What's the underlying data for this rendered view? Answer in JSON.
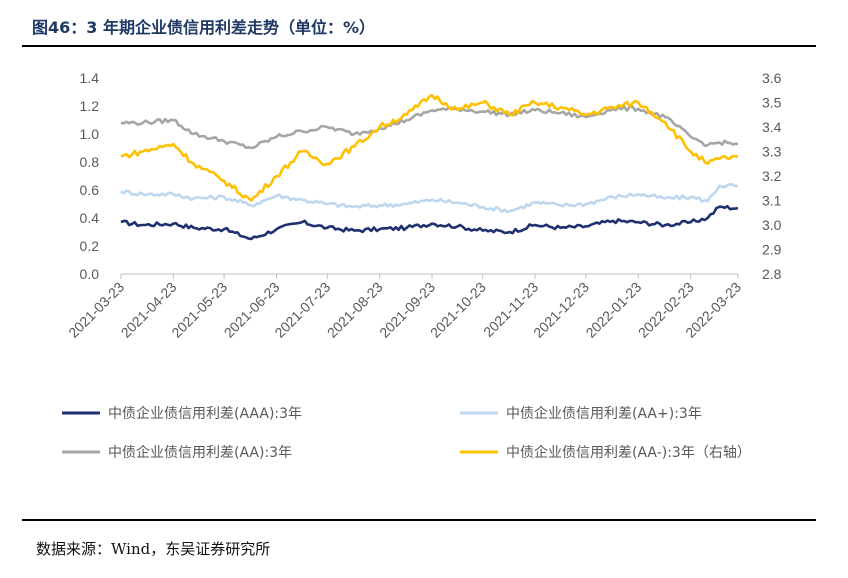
{
  "title": "图46：3 年期企业债信用利差走势（单位：%）",
  "source": "数据来源：Wind，东吴证券研究所",
  "chart_data": {
    "type": "line",
    "x_categories": [
      "2021-03-23",
      "2021-04-23",
      "2021-05-23",
      "2021-06-23",
      "2021-07-23",
      "2021-08-23",
      "2021-09-23",
      "2021-10-23",
      "2021-11-23",
      "2021-12-23",
      "2022-01-23",
      "2022-02-23",
      "2022-03-23"
    ],
    "y_left": {
      "ylim": [
        0.0,
        1.4
      ],
      "ticks": [
        "0.0",
        "0.2",
        "0.4",
        "0.6",
        "0.8",
        "1.0",
        "1.2",
        "1.4"
      ]
    },
    "y_right": {
      "ylim": [
        2.8,
        3.6
      ],
      "ticks": [
        "2.8",
        "2.9",
        "3.0",
        "3.1",
        "3.2",
        "3.3",
        "3.4",
        "3.5",
        "3.6"
      ]
    },
    "legend_placement": "bottom",
    "series": [
      {
        "name": "中债企业债信用利差(AAA):3年",
        "axis": "left",
        "color": "#1f3070",
        "x": [
          "2021-03-23",
          "2021-04-05",
          "2021-04-23",
          "2021-05-05",
          "2021-05-23",
          "2021-06-08",
          "2021-06-23",
          "2021-07-08",
          "2021-07-23",
          "2021-08-08",
          "2021-08-23",
          "2021-09-08",
          "2021-09-23",
          "2021-10-08",
          "2021-10-23",
          "2021-11-08",
          "2021-11-23",
          "2021-12-08",
          "2021-12-23",
          "2022-01-08",
          "2022-01-23",
          "2022-02-08",
          "2022-02-23",
          "2022-03-05",
          "2022-03-12",
          "2022-03-23"
        ],
        "values": [
          0.37,
          0.35,
          0.36,
          0.33,
          0.32,
          0.25,
          0.32,
          0.37,
          0.33,
          0.31,
          0.32,
          0.33,
          0.36,
          0.34,
          0.31,
          0.3,
          0.35,
          0.33,
          0.34,
          0.38,
          0.37,
          0.35,
          0.37,
          0.4,
          0.48,
          0.47
        ]
      },
      {
        "name": "中债企业债信用利差(AA+):3年",
        "axis": "left",
        "color": "#bdd7ee",
        "x": [
          "2021-03-23",
          "2021-04-05",
          "2021-04-23",
          "2021-05-05",
          "2021-05-23",
          "2021-06-08",
          "2021-06-23",
          "2021-07-08",
          "2021-07-23",
          "2021-08-08",
          "2021-08-23",
          "2021-09-08",
          "2021-09-23",
          "2021-10-08",
          "2021-10-23",
          "2021-11-08",
          "2021-11-23",
          "2021-12-08",
          "2021-12-23",
          "2022-01-08",
          "2022-01-23",
          "2022-02-08",
          "2022-02-23",
          "2022-03-05",
          "2022-03-12",
          "2022-03-23"
        ],
        "values": [
          0.59,
          0.57,
          0.57,
          0.54,
          0.55,
          0.49,
          0.56,
          0.53,
          0.5,
          0.48,
          0.49,
          0.5,
          0.53,
          0.51,
          0.48,
          0.45,
          0.51,
          0.49,
          0.5,
          0.55,
          0.57,
          0.54,
          0.55,
          0.52,
          0.63,
          0.63
        ]
      },
      {
        "name": "中债企业债信用利差(AA):3年",
        "axis": "left",
        "color": "#a6a6a6",
        "x": [
          "2021-03-23",
          "2021-04-05",
          "2021-04-23",
          "2021-05-05",
          "2021-05-23",
          "2021-06-08",
          "2021-06-23",
          "2021-07-08",
          "2021-07-23",
          "2021-08-08",
          "2021-08-23",
          "2021-09-08",
          "2021-09-23",
          "2021-10-08",
          "2021-10-23",
          "2021-11-08",
          "2021-11-23",
          "2021-12-08",
          "2021-12-23",
          "2022-01-08",
          "2022-01-23",
          "2022-02-08",
          "2022-02-23",
          "2022-03-05",
          "2022-03-12",
          "2022-03-23"
        ],
        "values": [
          1.08,
          1.08,
          1.1,
          1.0,
          0.95,
          0.9,
          0.98,
          1.02,
          1.05,
          1.0,
          1.04,
          1.1,
          1.17,
          1.18,
          1.16,
          1.14,
          1.17,
          1.15,
          1.12,
          1.18,
          1.18,
          1.12,
          0.98,
          0.92,
          0.94,
          0.93
        ]
      },
      {
        "name": "中债企业债信用利差(AA-):3年（右轴）",
        "axis": "right",
        "color": "#ffc000",
        "x": [
          "2021-03-23",
          "2021-04-05",
          "2021-04-23",
          "2021-05-05",
          "2021-05-23",
          "2021-06-08",
          "2021-06-23",
          "2021-07-08",
          "2021-07-23",
          "2021-08-08",
          "2021-08-23",
          "2021-09-08",
          "2021-09-23",
          "2021-10-08",
          "2021-10-23",
          "2021-11-08",
          "2021-11-23",
          "2021-12-08",
          "2021-12-23",
          "2022-01-08",
          "2022-01-23",
          "2022-02-08",
          "2022-02-23",
          "2022-03-05",
          "2022-03-12",
          "2022-03-23"
        ],
        "values": [
          3.28,
          3.3,
          3.33,
          3.25,
          3.18,
          3.1,
          3.2,
          3.3,
          3.25,
          3.32,
          3.4,
          3.45,
          3.53,
          3.47,
          3.5,
          3.45,
          3.5,
          3.48,
          3.45,
          3.48,
          3.5,
          3.42,
          3.3,
          3.25,
          3.27,
          3.28
        ]
      }
    ]
  }
}
